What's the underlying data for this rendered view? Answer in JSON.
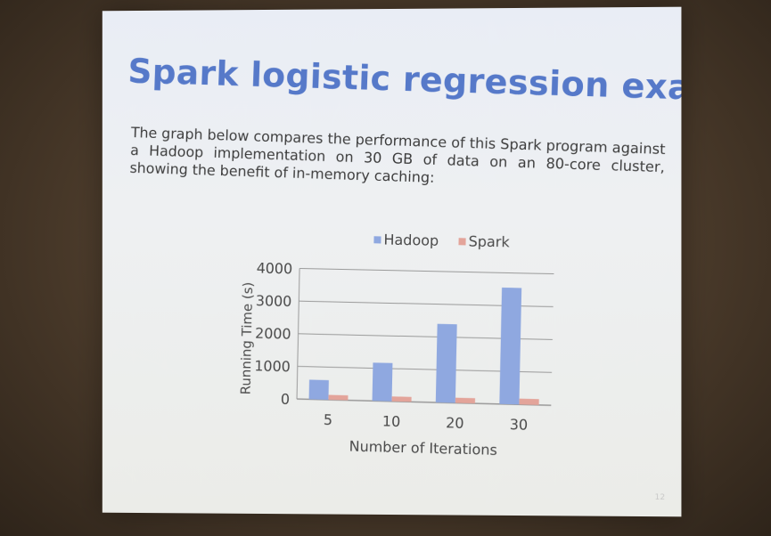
{
  "slide": {
    "title": "Spark logistic regression example",
    "body": "The graph below compares the performance of this Spark program against a Hadoop implementation on 30 GB of data on an 80-core cluster, showing the benefit of in-memory caching:",
    "page_number": "12"
  },
  "colors": {
    "title": "#5679c9",
    "hadoop": "#8fa8e0",
    "spark": "#e3a49a",
    "grid": "#9a9a9a",
    "axis_text": "#4a4a4a"
  },
  "chart_data": {
    "type": "bar",
    "title": "",
    "xlabel": "Number of Iterations",
    "ylabel": "Running Time (s)",
    "categories": [
      "5",
      "10",
      "20",
      "30"
    ],
    "series": [
      {
        "name": "Hadoop",
        "values": [
          600,
          1170,
          2400,
          3550
        ]
      },
      {
        "name": "Spark",
        "values": [
          150,
          150,
          160,
          180
        ]
      }
    ],
    "ylim": [
      0,
      4000
    ],
    "yticks": [
      "0",
      "1000",
      "2000",
      "3000",
      "4000"
    ],
    "grid": true,
    "legend": "top-center"
  }
}
